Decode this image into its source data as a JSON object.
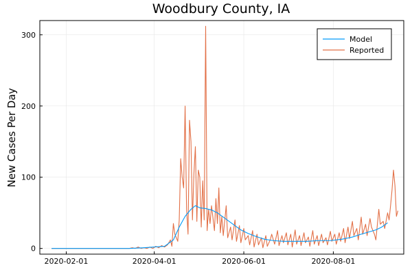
{
  "chart_data": {
    "type": "line",
    "title": "Woodbury County, IA",
    "xlabel": "",
    "ylabel": "New Cases Per Day",
    "x_axis": {
      "type": "date",
      "range": [
        "2020-01-14",
        "2020-09-18"
      ],
      "ticks": [
        "2020-02-01",
        "2020-04-01",
        "2020-06-01",
        "2020-08-01"
      ]
    },
    "y_axis": {
      "range": [
        -8,
        320
      ],
      "ticks": [
        0,
        100,
        200,
        300
      ]
    },
    "grid": true,
    "legend_position": "top-right",
    "series": [
      {
        "name": "Model",
        "color": "#009AFA",
        "points": [
          [
            "2020-01-22",
            0
          ],
          [
            "2020-03-15",
            0
          ],
          [
            "2020-03-25",
            1
          ],
          [
            "2020-04-01",
            2
          ],
          [
            "2020-04-08",
            3
          ],
          [
            "2020-04-14",
            12
          ],
          [
            "2020-04-18",
            30
          ],
          [
            "2020-04-22",
            45
          ],
          [
            "2020-04-26",
            55
          ],
          [
            "2020-04-29",
            60
          ],
          [
            "2020-05-02",
            57
          ],
          [
            "2020-05-06",
            56
          ],
          [
            "2020-05-10",
            54
          ],
          [
            "2020-05-14",
            50
          ],
          [
            "2020-05-18",
            44
          ],
          [
            "2020-05-22",
            38
          ],
          [
            "2020-05-26",
            32
          ],
          [
            "2020-05-30",
            26
          ],
          [
            "2020-06-04",
            21
          ],
          [
            "2020-06-09",
            17
          ],
          [
            "2020-06-15",
            13
          ],
          [
            "2020-06-21",
            11
          ],
          [
            "2020-06-28",
            10
          ],
          [
            "2020-07-06",
            10
          ],
          [
            "2020-07-14",
            10
          ],
          [
            "2020-07-22",
            11
          ],
          [
            "2020-07-30",
            11
          ],
          [
            "2020-08-07",
            13
          ],
          [
            "2020-08-14",
            16
          ],
          [
            "2020-08-20",
            20
          ],
          [
            "2020-08-25",
            23
          ],
          [
            "2020-08-30",
            26
          ],
          [
            "2020-09-03",
            30
          ],
          [
            "2020-09-07",
            36
          ]
        ]
      },
      {
        "name": "Reported",
        "color": "#E26F46",
        "points": [
          [
            "2020-01-22",
            0
          ],
          [
            "2020-03-15",
            0
          ],
          [
            "2020-03-17",
            1
          ],
          [
            "2020-03-19",
            0
          ],
          [
            "2020-03-21",
            2
          ],
          [
            "2020-03-23",
            0
          ],
          [
            "2020-03-25",
            1
          ],
          [
            "2020-03-27",
            0
          ],
          [
            "2020-03-29",
            2
          ],
          [
            "2020-03-31",
            0
          ],
          [
            "2020-04-02",
            3
          ],
          [
            "2020-04-04",
            1
          ],
          [
            "2020-04-06",
            4
          ],
          [
            "2020-04-08",
            2
          ],
          [
            "2020-04-10",
            5
          ],
          [
            "2020-04-12",
            12
          ],
          [
            "2020-04-13",
            3
          ],
          [
            "2020-04-14",
            35
          ],
          [
            "2020-04-15",
            20
          ],
          [
            "2020-04-17",
            10
          ],
          [
            "2020-04-18",
            40
          ],
          [
            "2020-04-19",
            126
          ],
          [
            "2020-04-20",
            100
          ],
          [
            "2020-04-21",
            85
          ],
          [
            "2020-04-22",
            200
          ],
          [
            "2020-04-23",
            55
          ],
          [
            "2020-04-24",
            20
          ],
          [
            "2020-04-25",
            180
          ],
          [
            "2020-04-26",
            150
          ],
          [
            "2020-04-27",
            40
          ],
          [
            "2020-04-28",
            105
          ],
          [
            "2020-04-29",
            143
          ],
          [
            "2020-04-30",
            38
          ],
          [
            "2020-05-01",
            110
          ],
          [
            "2020-05-02",
            100
          ],
          [
            "2020-05-03",
            30
          ],
          [
            "2020-05-04",
            95
          ],
          [
            "2020-05-05",
            40
          ],
          [
            "2020-05-06",
            312
          ],
          [
            "2020-05-07",
            25
          ],
          [
            "2020-05-08",
            55
          ],
          [
            "2020-05-09",
            35
          ],
          [
            "2020-05-10",
            60
          ],
          [
            "2020-05-12",
            25
          ],
          [
            "2020-05-13",
            70
          ],
          [
            "2020-05-14",
            35
          ],
          [
            "2020-05-15",
            85
          ],
          [
            "2020-05-16",
            22
          ],
          [
            "2020-05-17",
            45
          ],
          [
            "2020-05-18",
            18
          ],
          [
            "2020-05-20",
            60
          ],
          [
            "2020-05-21",
            15
          ],
          [
            "2020-05-23",
            30
          ],
          [
            "2020-05-24",
            12
          ],
          [
            "2020-05-26",
            40
          ],
          [
            "2020-05-27",
            10
          ],
          [
            "2020-05-29",
            32
          ],
          [
            "2020-05-30",
            8
          ],
          [
            "2020-06-01",
            28
          ],
          [
            "2020-06-02",
            12
          ],
          [
            "2020-06-04",
            18
          ],
          [
            "2020-06-05",
            5
          ],
          [
            "2020-06-07",
            25
          ],
          [
            "2020-06-08",
            2
          ],
          [
            "2020-06-10",
            20
          ],
          [
            "2020-06-11",
            5
          ],
          [
            "2020-06-13",
            15
          ],
          [
            "2020-06-14",
            1
          ],
          [
            "2020-06-16",
            18
          ],
          [
            "2020-06-17",
            3
          ],
          [
            "2020-06-19",
            12
          ],
          [
            "2020-06-20",
            20
          ],
          [
            "2020-06-22",
            6
          ],
          [
            "2020-06-24",
            25
          ],
          [
            "2020-06-25",
            4
          ],
          [
            "2020-06-27",
            18
          ],
          [
            "2020-06-28",
            8
          ],
          [
            "2020-06-30",
            22
          ],
          [
            "2020-07-01",
            5
          ],
          [
            "2020-07-03",
            20
          ],
          [
            "2020-07-04",
            2
          ],
          [
            "2020-07-06",
            26
          ],
          [
            "2020-07-07",
            6
          ],
          [
            "2020-07-09",
            18
          ],
          [
            "2020-07-10",
            4
          ],
          [
            "2020-07-12",
            22
          ],
          [
            "2020-07-13",
            8
          ],
          [
            "2020-07-15",
            16
          ],
          [
            "2020-07-16",
            3
          ],
          [
            "2020-07-18",
            25
          ],
          [
            "2020-07-19",
            6
          ],
          [
            "2020-07-21",
            18
          ],
          [
            "2020-07-22",
            4
          ],
          [
            "2020-07-24",
            20
          ],
          [
            "2020-07-25",
            8
          ],
          [
            "2020-07-27",
            15
          ],
          [
            "2020-07-28",
            5
          ],
          [
            "2020-07-30",
            24
          ],
          [
            "2020-07-31",
            10
          ],
          [
            "2020-08-02",
            20
          ],
          [
            "2020-08-03",
            6
          ],
          [
            "2020-08-05",
            22
          ],
          [
            "2020-08-06",
            10
          ],
          [
            "2020-08-08",
            28
          ],
          [
            "2020-08-09",
            8
          ],
          [
            "2020-08-11",
            30
          ],
          [
            "2020-08-12",
            14
          ],
          [
            "2020-08-14",
            38
          ],
          [
            "2020-08-15",
            18
          ],
          [
            "2020-08-17",
            28
          ],
          [
            "2020-08-18",
            12
          ],
          [
            "2020-08-20",
            44
          ],
          [
            "2020-08-21",
            20
          ],
          [
            "2020-08-23",
            34
          ],
          [
            "2020-08-24",
            18
          ],
          [
            "2020-08-26",
            42
          ],
          [
            "2020-08-27",
            30
          ],
          [
            "2020-08-29",
            20
          ],
          [
            "2020-08-30",
            12
          ],
          [
            "2020-09-01",
            55
          ],
          [
            "2020-09-02",
            34
          ],
          [
            "2020-09-04",
            38
          ],
          [
            "2020-09-05",
            28
          ],
          [
            "2020-09-07",
            50
          ],
          [
            "2020-09-08",
            40
          ],
          [
            "2020-09-09",
            60
          ],
          [
            "2020-09-10",
            82
          ],
          [
            "2020-09-11",
            110
          ],
          [
            "2020-09-12",
            88
          ],
          [
            "2020-09-13",
            45
          ],
          [
            "2020-09-14",
            53
          ]
        ]
      }
    ]
  }
}
